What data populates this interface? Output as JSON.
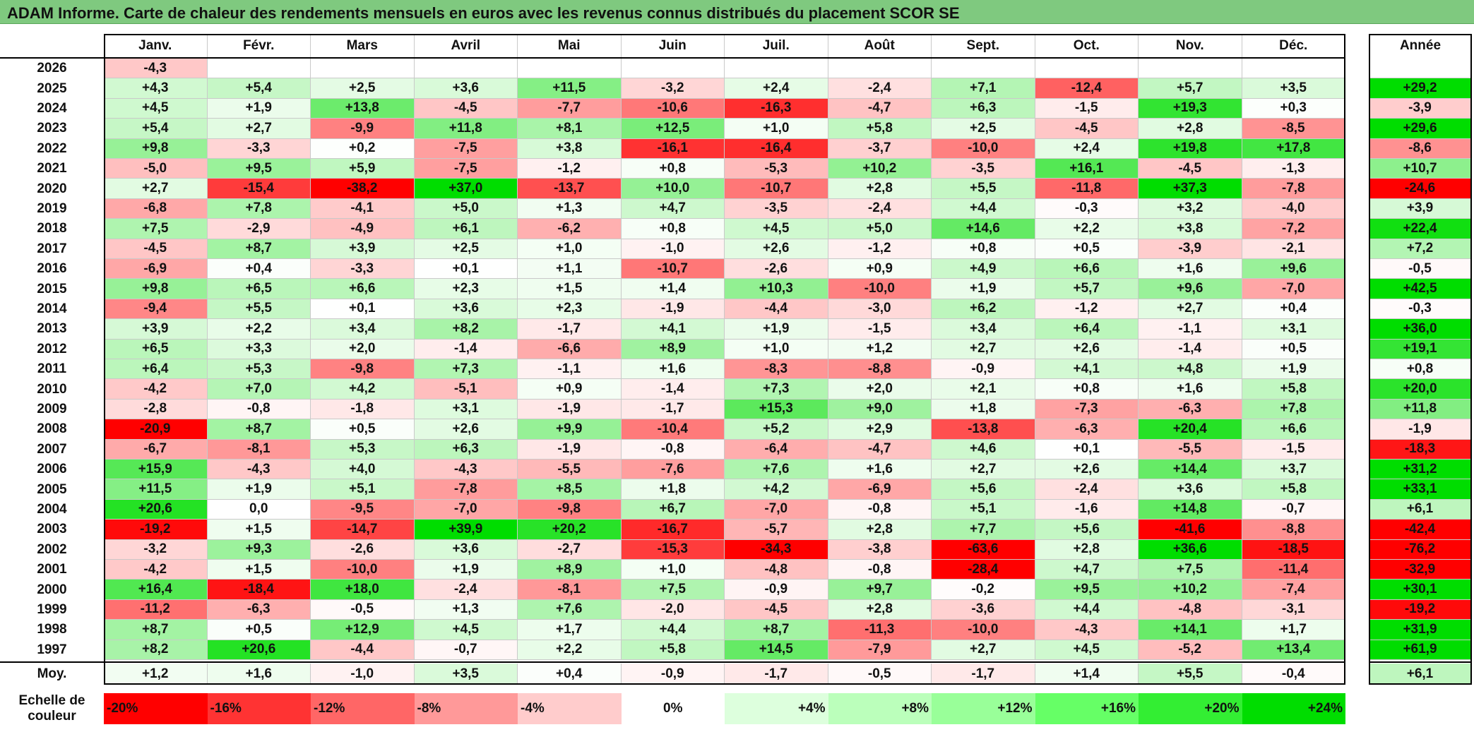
{
  "title": "ADAM Informe. Carte de chaleur des rendements mensuels en euros avec les revenus connus distribués du placement SCOR SE",
  "chart_data": {
    "type": "heatmap",
    "title": "ADAM Informe. Carte de chaleur des rendements mensuels en euros avec les revenus connus distribués du placement SCOR SE",
    "columns": [
      "Janv.",
      "Févr.",
      "Mars",
      "Avril",
      "Mai",
      "Juin",
      "Juil.",
      "Août",
      "Sept.",
      "Oct.",
      "Nov.",
      "Déc."
    ],
    "annual_header": "Année",
    "rows": [
      {
        "year": "2026",
        "months": [
          "-4,3",
          "",
          "",
          "",
          "",
          "",
          "",
          "",
          "",
          "",
          "",
          ""
        ],
        "annual": ""
      },
      {
        "year": "2025",
        "months": [
          "+4,3",
          "+5,4",
          "+2,5",
          "+3,6",
          "+11,5",
          "-3,2",
          "+2,4",
          "-2,4",
          "+7,1",
          "-12,4",
          "+5,7",
          "+3,5"
        ],
        "annual": "+29,2"
      },
      {
        "year": "2024",
        "months": [
          "+4,5",
          "+1,9",
          "+13,8",
          "-4,5",
          "-7,7",
          "-10,6",
          "-16,3",
          "-4,7",
          "+6,3",
          "-1,5",
          "+19,3",
          "+0,3"
        ],
        "annual": "-3,9"
      },
      {
        "year": "2023",
        "months": [
          "+5,4",
          "+2,7",
          "-9,9",
          "+11,8",
          "+8,1",
          "+12,5",
          "+1,0",
          "+5,8",
          "+2,5",
          "-4,5",
          "+2,8",
          "-8,5"
        ],
        "annual": "+29,6"
      },
      {
        "year": "2022",
        "months": [
          "+9,8",
          "-3,3",
          "+0,2",
          "-7,5",
          "+3,8",
          "-16,1",
          "-16,4",
          "-3,7",
          "-10,0",
          "+2,4",
          "+19,8",
          "+17,8"
        ],
        "annual": "-8,6"
      },
      {
        "year": "2021",
        "months": [
          "-5,0",
          "+9,5",
          "+5,9",
          "-7,5",
          "-1,2",
          "+0,8",
          "-5,3",
          "+10,2",
          "-3,5",
          "+16,1",
          "-4,5",
          "-1,3"
        ],
        "annual": "+10,7"
      },
      {
        "year": "2020",
        "months": [
          "+2,7",
          "-15,4",
          "-38,2",
          "+37,0",
          "-13,7",
          "+10,0",
          "-10,7",
          "+2,8",
          "+5,5",
          "-11,8",
          "+37,3",
          "-7,8"
        ],
        "annual": "-24,6"
      },
      {
        "year": "2019",
        "months": [
          "-6,8",
          "+7,8",
          "-4,1",
          "+5,0",
          "+1,3",
          "+4,7",
          "-3,5",
          "-2,4",
          "+4,4",
          "-0,3",
          "+3,2",
          "-4,0"
        ],
        "annual": "+3,9"
      },
      {
        "year": "2018",
        "months": [
          "+7,5",
          "-2,9",
          "-4,9",
          "+6,1",
          "-6,2",
          "+0,8",
          "+4,5",
          "+5,0",
          "+14,6",
          "+2,2",
          "+3,8",
          "-7,2"
        ],
        "annual": "+22,4"
      },
      {
        "year": "2017",
        "months": [
          "-4,5",
          "+8,7",
          "+3,9",
          "+2,5",
          "+1,0",
          "-1,0",
          "+2,6",
          "-1,2",
          "+0,8",
          "+0,5",
          "-3,9",
          "-2,1"
        ],
        "annual": "+7,2"
      },
      {
        "year": "2016",
        "months": [
          "-6,9",
          "+0,4",
          "-3,3",
          "+0,1",
          "+1,1",
          "-10,7",
          "-2,6",
          "+0,9",
          "+4,9",
          "+6,6",
          "+1,6",
          "+9,6"
        ],
        "annual": "-0,5"
      },
      {
        "year": "2015",
        "months": [
          "+9,8",
          "+6,5",
          "+6,6",
          "+2,3",
          "+1,5",
          "+1,4",
          "+10,3",
          "-10,0",
          "+1,9",
          "+5,7",
          "+9,6",
          "-7,0"
        ],
        "annual": "+42,5"
      },
      {
        "year": "2014",
        "months": [
          "-9,4",
          "+5,5",
          "+0,1",
          "+3,6",
          "+2,3",
          "-1,9",
          "-4,4",
          "-3,0",
          "+6,2",
          "-1,2",
          "+2,7",
          "+0,4"
        ],
        "annual": "-0,3"
      },
      {
        "year": "2013",
        "months": [
          "+3,9",
          "+2,2",
          "+3,4",
          "+8,2",
          "-1,7",
          "+4,1",
          "+1,9",
          "-1,5",
          "+3,4",
          "+6,4",
          "-1,1",
          "+3,1"
        ],
        "annual": "+36,0"
      },
      {
        "year": "2012",
        "months": [
          "+6,5",
          "+3,3",
          "+2,0",
          "-1,4",
          "-6,6",
          "+8,9",
          "+1,0",
          "+1,2",
          "+2,7",
          "+2,6",
          "-1,4",
          "+0,5"
        ],
        "annual": "+19,1"
      },
      {
        "year": "2011",
        "months": [
          "+6,4",
          "+5,3",
          "-9,8",
          "+7,3",
          "-1,1",
          "+1,6",
          "-8,3",
          "-8,8",
          "-0,9",
          "+4,1",
          "+4,8",
          "+1,9"
        ],
        "annual": "+0,8"
      },
      {
        "year": "2010",
        "months": [
          "-4,2",
          "+7,0",
          "+4,2",
          "-5,1",
          "+0,9",
          "-1,4",
          "+7,3",
          "+2,0",
          "+2,1",
          "+0,8",
          "+1,6",
          "+5,8"
        ],
        "annual": "+20,0"
      },
      {
        "year": "2009",
        "months": [
          "-2,8",
          "-0,8",
          "-1,8",
          "+3,1",
          "-1,9",
          "-1,7",
          "+15,3",
          "+9,0",
          "+1,8",
          "-7,3",
          "-6,3",
          "+7,8"
        ],
        "annual": "+11,8"
      },
      {
        "year": "2008",
        "months": [
          "-20,9",
          "+8,7",
          "+0,5",
          "+2,6",
          "+9,9",
          "-10,4",
          "+5,2",
          "+2,9",
          "-13,8",
          "-6,3",
          "+20,4",
          "+6,6"
        ],
        "annual": "-1,9"
      },
      {
        "year": "2007",
        "months": [
          "-6,7",
          "-8,1",
          "+5,3",
          "+6,3",
          "-1,9",
          "-0,8",
          "-6,4",
          "-4,7",
          "+4,6",
          "+0,1",
          "-5,5",
          "-1,5"
        ],
        "annual": "-18,3"
      },
      {
        "year": "2006",
        "months": [
          "+15,9",
          "-4,3",
          "+4,0",
          "-4,3",
          "-5,5",
          "-7,6",
          "+7,6",
          "+1,6",
          "+2,7",
          "+2,6",
          "+14,4",
          "+3,7"
        ],
        "annual": "+31,2"
      },
      {
        "year": "2005",
        "months": [
          "+11,5",
          "+1,9",
          "+5,1",
          "-7,8",
          "+8,5",
          "+1,8",
          "+4,2",
          "-6,9",
          "+5,6",
          "-2,4",
          "+3,6",
          "+5,8"
        ],
        "annual": "+33,1"
      },
      {
        "year": "2004",
        "months": [
          "+20,6",
          "0,0",
          "-9,5",
          "-7,0",
          "-9,8",
          "+6,7",
          "-7,0",
          "-0,8",
          "+5,1",
          "-1,6",
          "+14,8",
          "-0,7"
        ],
        "annual": "+6,1"
      },
      {
        "year": "2003",
        "months": [
          "-19,2",
          "+1,5",
          "-14,7",
          "+39,9",
          "+20,2",
          "-16,7",
          "-5,7",
          "+2,8",
          "+7,7",
          "+5,6",
          "-41,6",
          "-8,8"
        ],
        "annual": "-42,4"
      },
      {
        "year": "2002",
        "months": [
          "-3,2",
          "+9,3",
          "-2,6",
          "+3,6",
          "-2,7",
          "-15,3",
          "-34,3",
          "-3,8",
          "-63,6",
          "+2,8",
          "+36,6",
          "-18,5"
        ],
        "annual": "-76,2"
      },
      {
        "year": "2001",
        "months": [
          "-4,2",
          "+1,5",
          "-10,0",
          "+1,9",
          "+8,9",
          "+1,0",
          "-4,8",
          "-0,8",
          "-28,4",
          "+4,7",
          "+7,5",
          "-11,4"
        ],
        "annual": "-32,9"
      },
      {
        "year": "2000",
        "months": [
          "+16,4",
          "-18,4",
          "+18,0",
          "-2,4",
          "-8,1",
          "+7,5",
          "-0,9",
          "+9,7",
          "-0,2",
          "+9,5",
          "+10,2",
          "-7,4"
        ],
        "annual": "+30,1"
      },
      {
        "year": "1999",
        "months": [
          "-11,2",
          "-6,3",
          "-0,5",
          "+1,3",
          "+7,6",
          "-2,0",
          "-4,5",
          "+2,8",
          "-3,6",
          "+4,4",
          "-4,8",
          "-3,1"
        ],
        "annual": "-19,2"
      },
      {
        "year": "1998",
        "months": [
          "+8,7",
          "+0,5",
          "+12,9",
          "+4,5",
          "+1,7",
          "+4,4",
          "+8,7",
          "-11,3",
          "-10,0",
          "-4,3",
          "+14,1",
          "+1,7"
        ],
        "annual": "+31,9"
      },
      {
        "year": "1997",
        "months": [
          "+8,2",
          "+20,6",
          "-4,4",
          "-0,7",
          "+2,2",
          "+5,8",
          "+14,5",
          "-7,9",
          "+2,7",
          "+4,5",
          "-5,2",
          "+13,4"
        ],
        "annual": "+61,9"
      }
    ],
    "average": {
      "label": "Moy.",
      "months": [
        "+1,2",
        "+1,6",
        "-1,0",
        "+3,5",
        "+0,4",
        "-0,9",
        "-1,7",
        "-0,5",
        "-1,7",
        "+1,4",
        "+5,5",
        "-0,4"
      ],
      "annual": "+6,1"
    },
    "color_scale": {
      "label_line1": "Echelle de",
      "label_line2": "couleur",
      "stops": [
        {
          "label": "-20%",
          "value": -20,
          "color": "#ff0000"
        },
        {
          "label": "-16%",
          "value": -16,
          "color": "#ff3333"
        },
        {
          "label": "-12%",
          "value": -12,
          "color": "#ff6666"
        },
        {
          "label": "-8%",
          "value": -8,
          "color": "#ff9999"
        },
        {
          "label": "-4%",
          "value": -4,
          "color": "#ffcccc"
        },
        {
          "label": "0%",
          "value": 0,
          "color": "#ffffff"
        },
        {
          "label": "+4%",
          "value": 4,
          "color": "#ddffdd"
        },
        {
          "label": "+8%",
          "value": 8,
          "color": "#bbffbb"
        },
        {
          "label": "+12%",
          "value": 12,
          "color": "#99ff99"
        },
        {
          "label": "+16%",
          "value": 16,
          "color": "#66ff66"
        },
        {
          "label": "+20%",
          "value": 20,
          "color": "#33ee33"
        },
        {
          "label": "+24%",
          "value": 24,
          "color": "#00dd00"
        }
      ]
    }
  }
}
